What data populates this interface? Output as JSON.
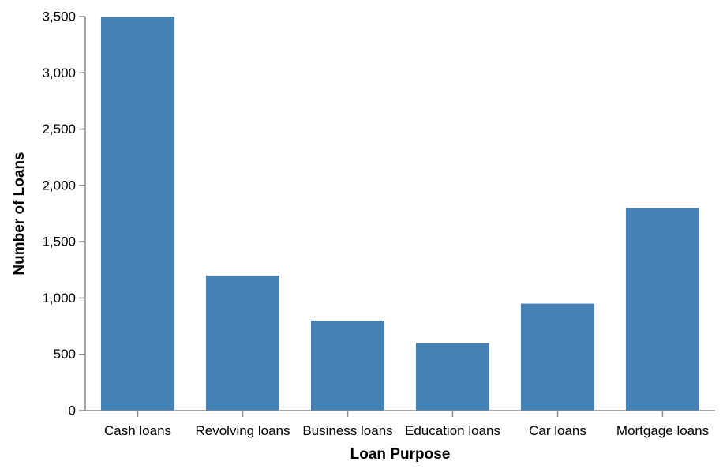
{
  "chart_data": {
    "type": "bar",
    "categories": [
      "Cash loans",
      "Revolving loans",
      "Business loans",
      "Education loans",
      "Car loans",
      "Mortgage loans"
    ],
    "values": [
      3500,
      1200,
      800,
      600,
      950,
      1800
    ],
    "title": "",
    "xlabel": "Loan Purpose",
    "ylabel": "Number of Loans",
    "ylim": [
      0,
      3500
    ],
    "yticks": [
      0,
      500,
      1000,
      1500,
      2000,
      2500,
      3000,
      3500
    ],
    "ytick_labels": [
      "0",
      "500",
      "1,000",
      "1,500",
      "2,000",
      "2,500",
      "3,000",
      "3,500"
    ],
    "grid": false,
    "colors": {
      "bar": "#4682b4",
      "axis": "#888888",
      "text": "#000000"
    }
  }
}
